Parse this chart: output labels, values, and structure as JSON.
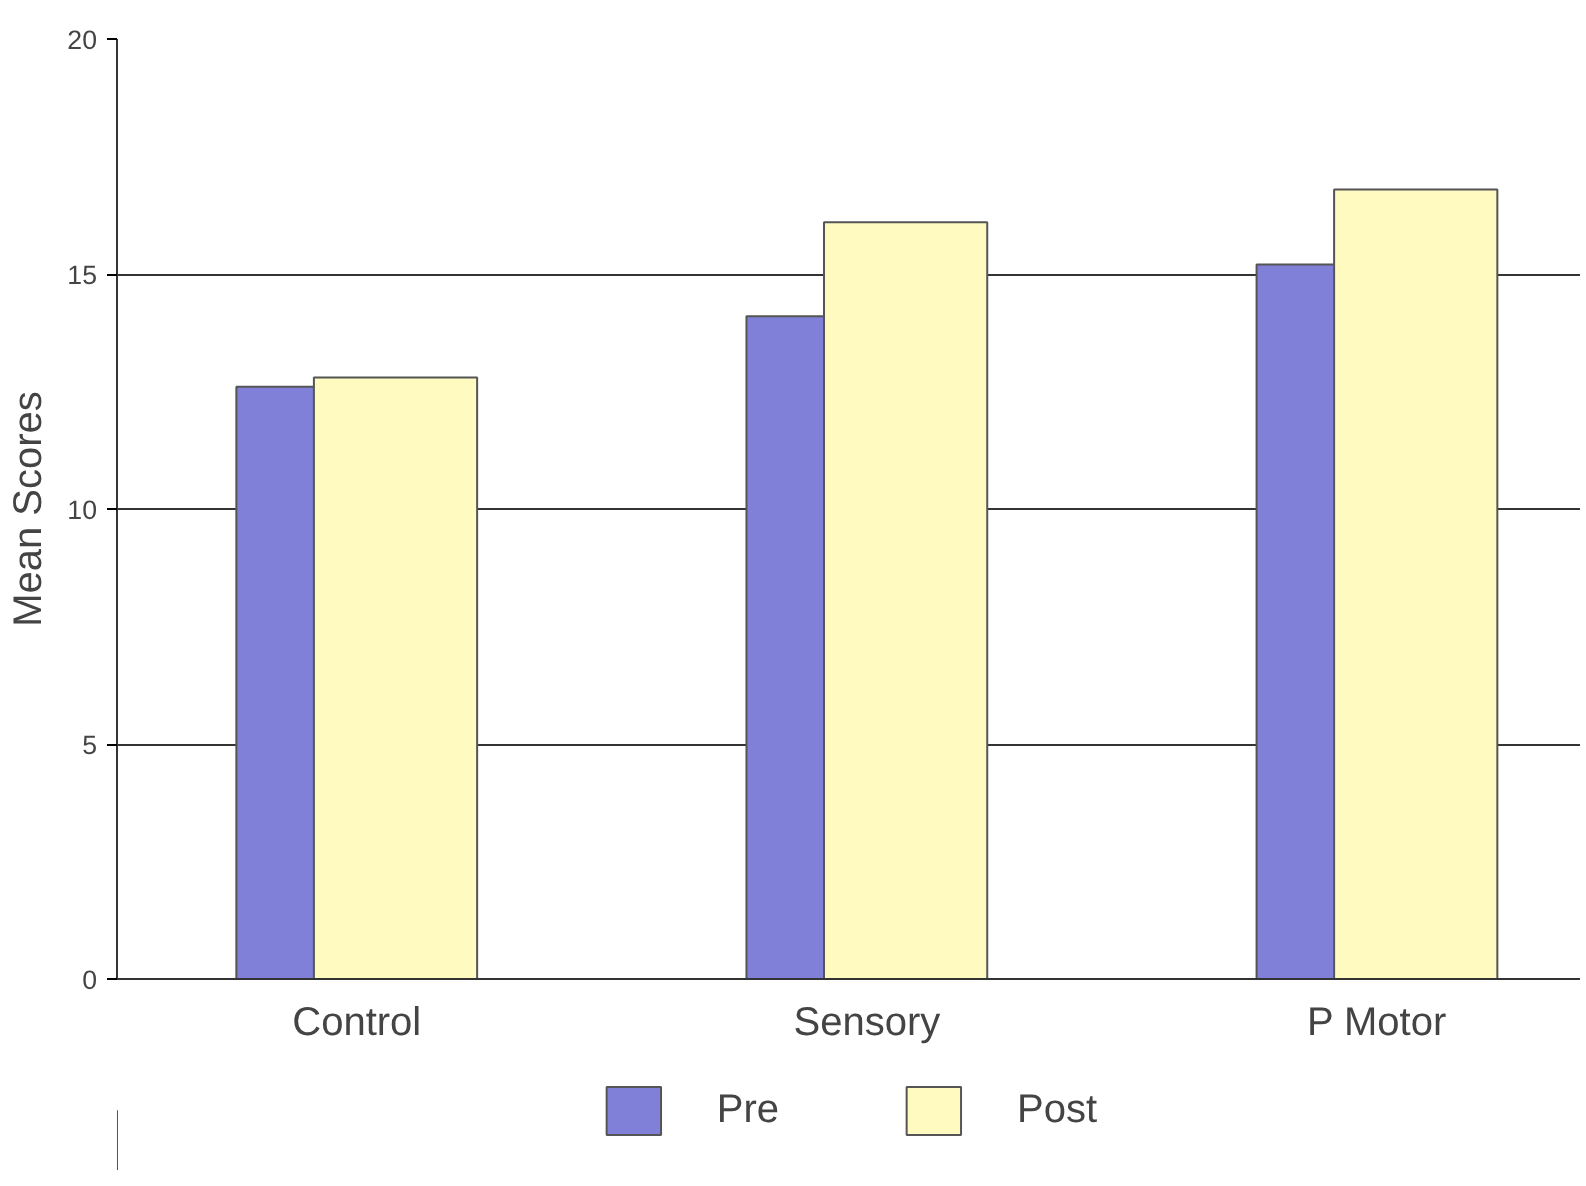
{
  "chart_data": {
    "type": "bar",
    "ylabel": "Mean Scores",
    "categories": [
      "Control",
      "Sensory",
      "P Motor"
    ],
    "series": [
      {
        "name": "Pre",
        "color": "#8080d8",
        "values": [
          12.6,
          14.1,
          15.2
        ]
      },
      {
        "name": "Post",
        "color": "#fffac0",
        "values": [
          12.8,
          16.1,
          16.8
        ]
      }
    ],
    "ylim": [
      0,
      20
    ],
    "yticks": [
      0,
      5,
      10,
      15,
      20
    ],
    "grid": "y",
    "legend": "bottom"
  }
}
